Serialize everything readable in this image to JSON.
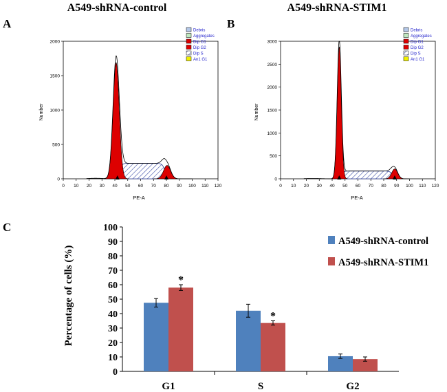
{
  "panel_letters": {
    "a": "A",
    "b": "B",
    "c": "C"
  },
  "chart_data": [
    {
      "id": "A",
      "type": "area",
      "title": "A549-shRNA-control",
      "xlabel": "PE-A",
      "ylabel": "Number",
      "xlim": [
        0,
        120
      ],
      "ylim": [
        0,
        2000
      ],
      "xticks": [
        0,
        10,
        20,
        30,
        40,
        50,
        60,
        70,
        80,
        90,
        100,
        110,
        120
      ],
      "yticks": [
        0,
        500,
        1000,
        1500,
        2000
      ],
      "legend": [
        "Debris",
        "Aggregates",
        "Dip G1",
        "Dip G2",
        "Dip S",
        "An1 G1"
      ],
      "legend_colors": [
        "#b4c8e8",
        "#bfe8bf",
        "#dd0000",
        "#dd0000",
        "#ffffff",
        "#f0f000"
      ],
      "g1": {
        "mean": 41,
        "sd": 2.4,
        "height": 1690
      },
      "g2": {
        "mean": 80.5,
        "sd": 2.7,
        "height": 195
      },
      "s_phase": {
        "start": 43,
        "end": 79,
        "level": 225
      },
      "markers": [
        42,
        80
      ]
    },
    {
      "id": "B",
      "type": "area",
      "title": "A549-shRNA-STIM1",
      "xlabel": "PE-A",
      "ylabel": "Number",
      "xlim": [
        0,
        120
      ],
      "ylim": [
        0,
        3000
      ],
      "xticks": [
        0,
        10,
        20,
        30,
        40,
        50,
        60,
        70,
        80,
        90,
        100,
        110,
        120
      ],
      "yticks": [
        0,
        500,
        1000,
        1500,
        2000,
        2500,
        3000
      ],
      "legend": [
        "Debris",
        "Aggregates",
        "Dip G1",
        "Dip G2",
        "Dip S",
        "An1 G1"
      ],
      "legend_colors": [
        "#b4c8e8",
        "#bfe8bf",
        "#dd0000",
        "#dd0000",
        "#ffffff",
        "#f0f000"
      ],
      "g1": {
        "mean": 45.5,
        "sd": 1.6,
        "height": 2880
      },
      "g2": {
        "mean": 88.5,
        "sd": 2.3,
        "height": 215
      },
      "s_phase": {
        "start": 47,
        "end": 87,
        "level": 170
      },
      "markers": [
        45.5,
        88.5
      ]
    },
    {
      "id": "C",
      "type": "bar",
      "ylabel": "Percentage of cells (%)",
      "categories": [
        "G1",
        "S",
        "G2"
      ],
      "ylim": [
        0,
        100
      ],
      "yticks": [
        0,
        10,
        20,
        30,
        40,
        50,
        60,
        70,
        80,
        90,
        100
      ],
      "series": [
        {
          "name": "A549-shRNA-control",
          "color": "#4f81bd",
          "values": [
            47.5,
            42,
            10.5
          ],
          "errors": [
            3,
            4.5,
            1.5
          ]
        },
        {
          "name": "A549-shRNA-STIM1",
          "color": "#c0504d",
          "values": [
            58,
            33.5,
            8.5
          ],
          "errors": [
            2,
            1.5,
            1.5
          ]
        }
      ],
      "significance": [
        {
          "label": "*",
          "category": 0,
          "series": 1
        },
        {
          "label": "*",
          "category": 1,
          "series": 1
        }
      ]
    }
  ]
}
